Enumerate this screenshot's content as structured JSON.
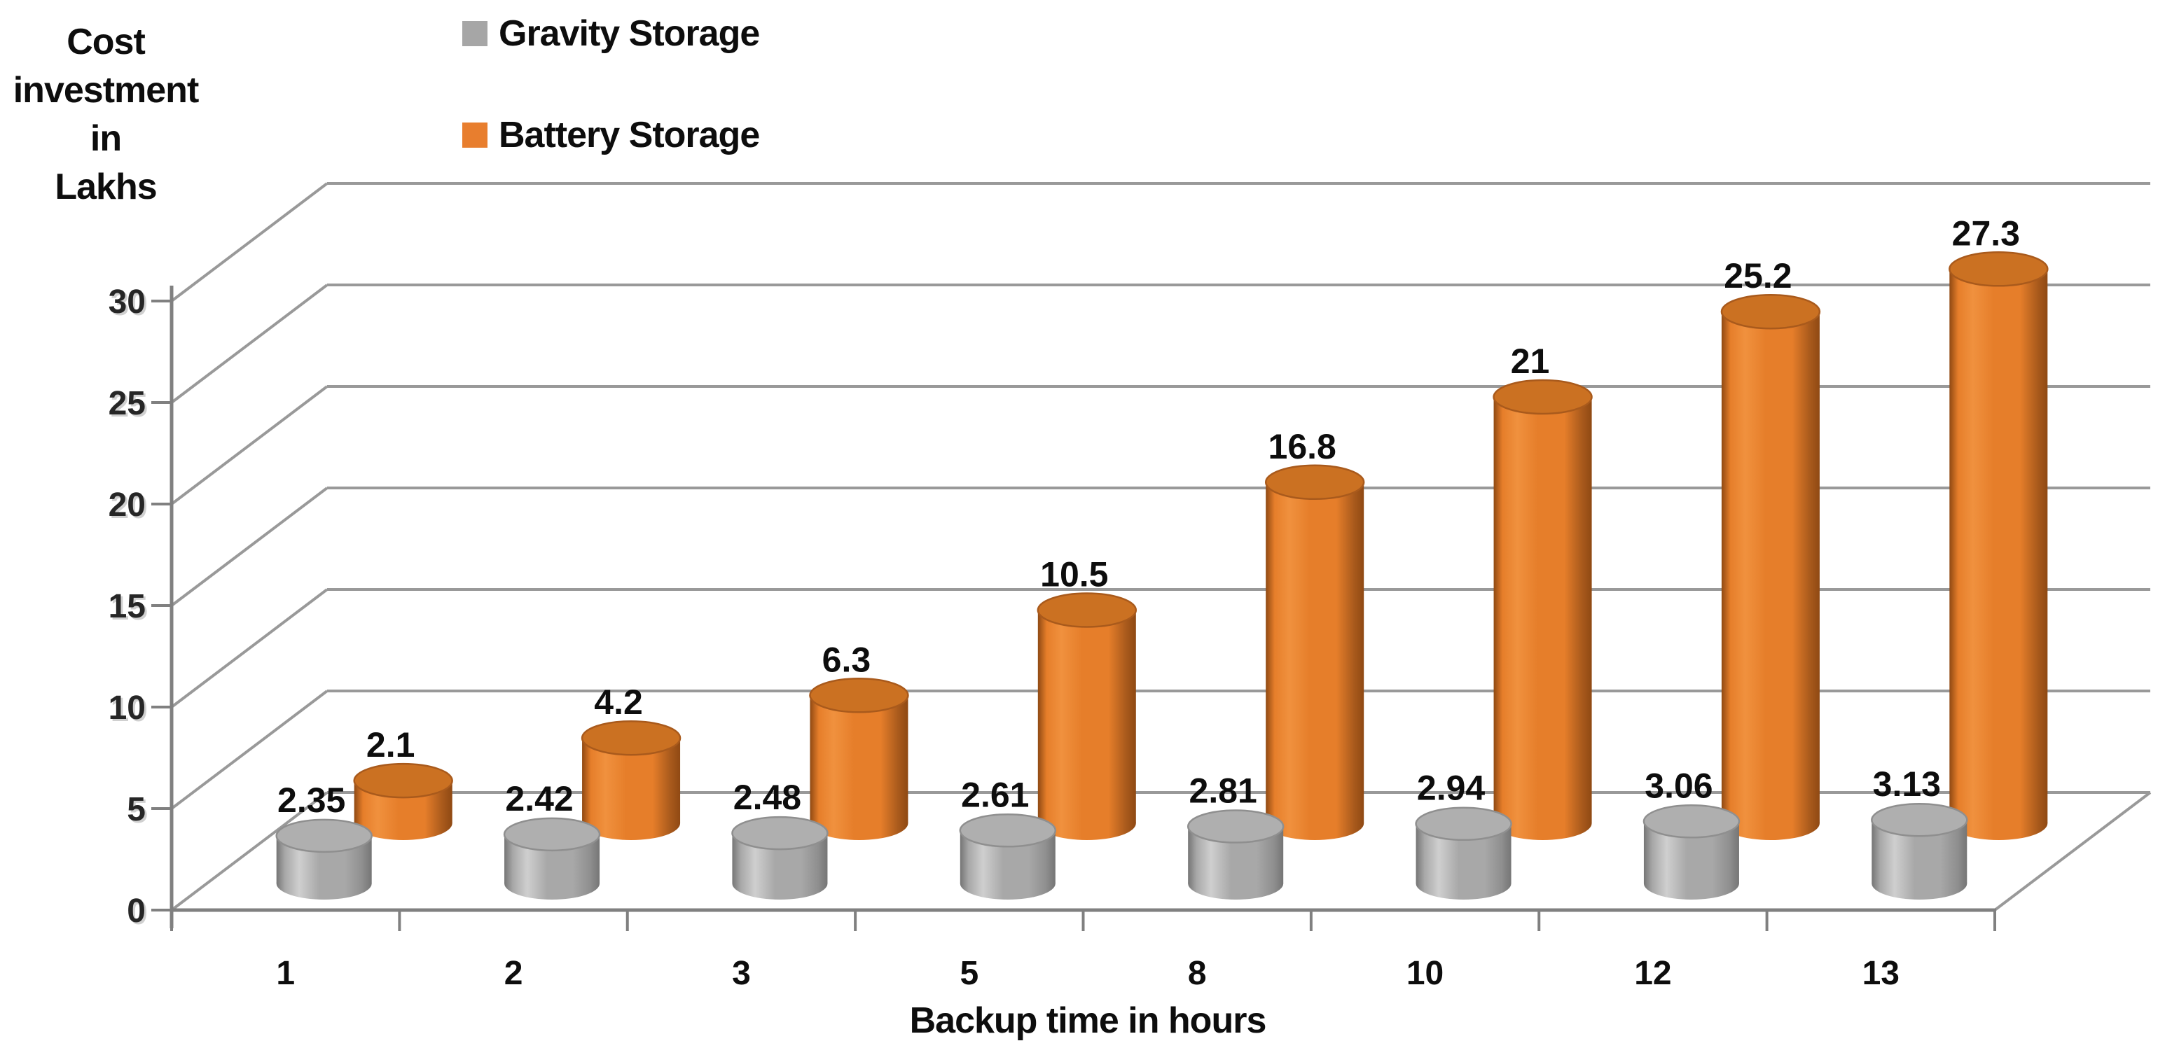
{
  "page": {
    "background": "#ffffff"
  },
  "y_axis_title": {
    "lines": [
      "Cost",
      "investment",
      "in",
      "Lakhs"
    ]
  },
  "x_axis_title": "Backup time in hours",
  "legend": {
    "items": [
      {
        "label": "Gravity Storage",
        "color": "#A6A6A6"
      },
      {
        "label": "Battery Storage",
        "color": "#E87E2E"
      }
    ]
  },
  "chart_data": {
    "type": "bar",
    "subtype": "3d-cylinder",
    "title": "",
    "categories": [
      "1",
      "2",
      "3",
      "5",
      "8",
      "10",
      "12",
      "13"
    ],
    "series": [
      {
        "name": "Gravity Storage",
        "color": "#A8A8A8",
        "top_color": "#AFAFAF",
        "rim_color": "#8F8F8F",
        "edge_color": "#757575",
        "highlight_color": "#CFCFCF",
        "values": [
          2.35,
          2.42,
          2.48,
          2.61,
          2.81,
          2.94,
          3.06,
          3.13
        ],
        "labels": [
          "2.35",
          "2.42",
          "2.48",
          "2.61",
          "2.81",
          "2.94",
          "3.06",
          "3.13"
        ]
      },
      {
        "name": "Battery Storage",
        "color": "#E67E2A",
        "top_color": "#CB7122",
        "rim_color": "#A95A1C",
        "edge_color": "#8F4913",
        "highlight_color": "#F0913E",
        "values": [
          2.1,
          4.2,
          6.3,
          10.5,
          16.8,
          21,
          25.2,
          27.3
        ],
        "labels": [
          "2.1",
          "4.2",
          "6.3",
          "10.5",
          "16.8",
          "21",
          "25.2",
          "27.3"
        ]
      }
    ],
    "xlabel": "Backup time in hours",
    "ylabel": "Cost investment in Lakhs",
    "yticks": [
      0,
      5,
      10,
      15,
      20,
      25,
      30
    ],
    "ylim": [
      0,
      30
    ],
    "grid": true,
    "gridline_color": "#999999",
    "axis_color": "#808080",
    "label_color": "#0d0d0d",
    "tick_label_color": "#262626",
    "legend_position": "top-inside-left"
  }
}
